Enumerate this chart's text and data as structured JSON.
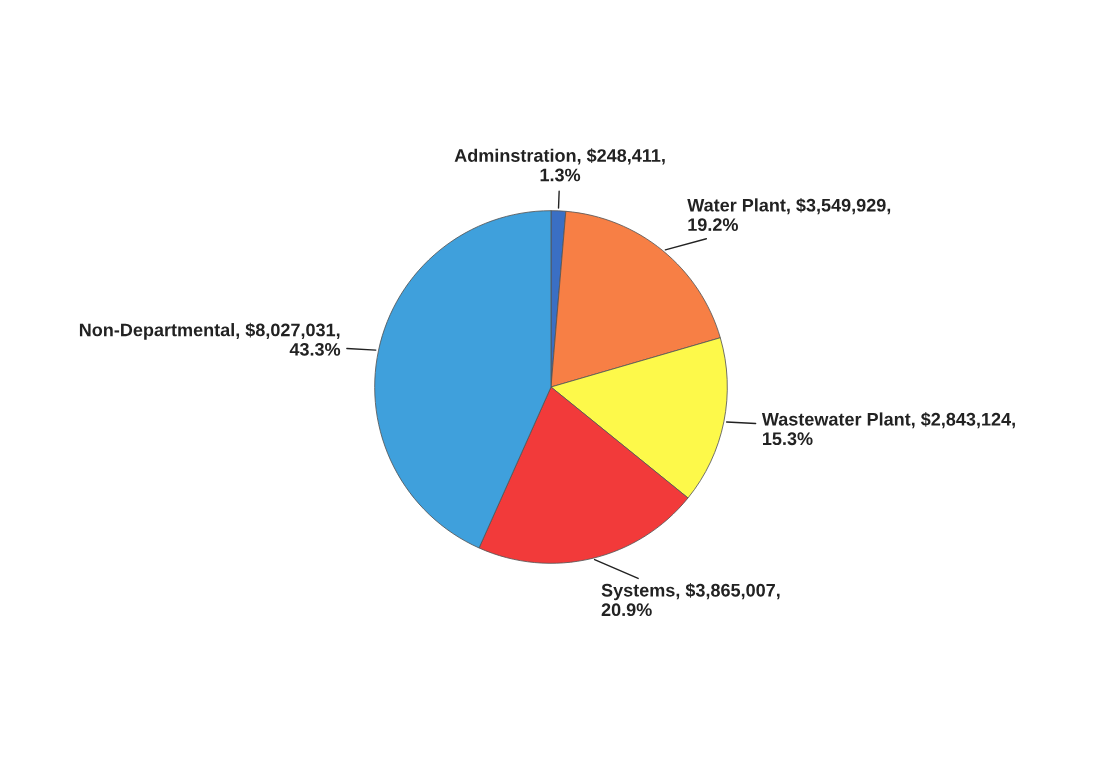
{
  "chart_data": {
    "type": "pie",
    "categories": [
      "Adminstration",
      "Water Plant",
      "Wastewater Plant",
      "Systems",
      "Non-Departmental"
    ],
    "values": [
      248411,
      3549929,
      2843124,
      3865007,
      8027031
    ],
    "value_labels": [
      "$248,411, 1.3%",
      "$3,549,929, 19.2%",
      "$2,843,124, 15.3%",
      "$3,865,007, 20.9%",
      "$8,027,031, 43.3%"
    ],
    "colors": [
      "#3a6fc4",
      "#f77f45",
      "#fdf94a",
      "#f23a3a",
      "#3fa0dc"
    ],
    "legend": false
  }
}
